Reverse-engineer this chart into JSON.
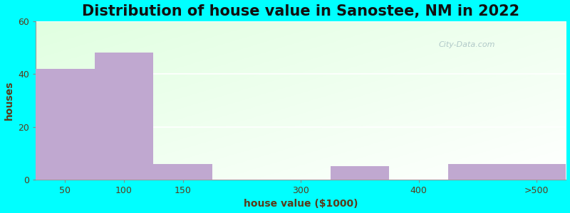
{
  "title": "Distribution of house value in Sanostee, NM in 2022",
  "xlabel": "house value ($1000)",
  "ylabel": "houses",
  "tick_labels": [
    "50",
    "100",
    "150",
    "300",
    "400",
    ">500"
  ],
  "tick_positions": [
    0.5,
    1.5,
    2.5,
    4.5,
    6.5,
    8.5
  ],
  "bar_lefts": [
    0,
    1,
    2,
    3,
    5,
    7
  ],
  "bar_widths": [
    1,
    1,
    1,
    1,
    1,
    2
  ],
  "values": [
    42,
    48,
    6,
    0,
    5,
    6
  ],
  "bar_color": "#C0A8D0",
  "ylim": [
    0,
    60
  ],
  "yticks": [
    0,
    20,
    40,
    60
  ],
  "xlim": [
    0,
    9
  ],
  "bg_outer": "#00FFFF",
  "title_fontsize": 15,
  "axis_label_fontsize": 10,
  "tick_fontsize": 9,
  "title_color": "#111111",
  "label_color": "#5a3a1a",
  "watermark_text": "City-Data.com",
  "watermark_color": "#b0c8c8"
}
